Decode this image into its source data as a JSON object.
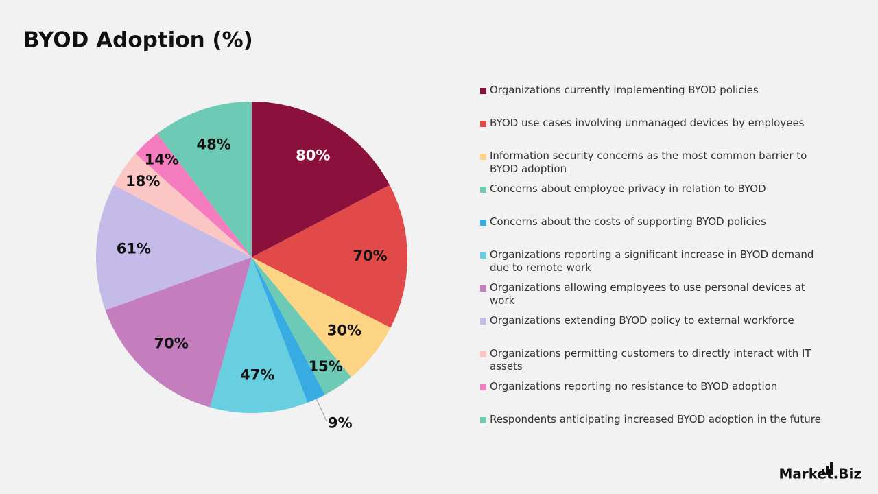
{
  "chart_data": {
    "type": "pie",
    "title": "BYOD Adoption (%)",
    "categories": [
      "Organizations currently implementing BYOD policies",
      "BYOD use cases involving unmanaged devices by employees",
      "Information security concerns as the most common barrier to BYOD adoption",
      "Concerns about employee privacy in relation to BYOD",
      "Concerns about the costs of supporting BYOD policies",
      "Organizations reporting a significant increase in BYOD demand due to remote work",
      "Organizations allowing employees to use personal devices at work",
      "Organizations extending BYOD policy to external workforce",
      "Organizations permitting customers to directly interact with IT assets",
      "Organizations reporting no resistance to BYOD adoption",
      "Respondents anticipating increased BYOD adoption in the future"
    ],
    "values": [
      80,
      70,
      30,
      15,
      9,
      47,
      70,
      61,
      18,
      14,
      48
    ],
    "value_labels": [
      "80%",
      "70%",
      "30%",
      "15%",
      "9%",
      "47%",
      "70%",
      "61%",
      "18%",
      "14%",
      "48%"
    ],
    "colors": [
      "#8b113c",
      "#e24a4a",
      "#fdd384",
      "#6dcbb5",
      "#38ace2",
      "#68cfe0",
      "#c47dbd",
      "#c5bbe9",
      "#fcc6c4",
      "#f47cbf",
      "#6dcbb5"
    ],
    "legend": "right"
  },
  "branding": "Market.Biz"
}
